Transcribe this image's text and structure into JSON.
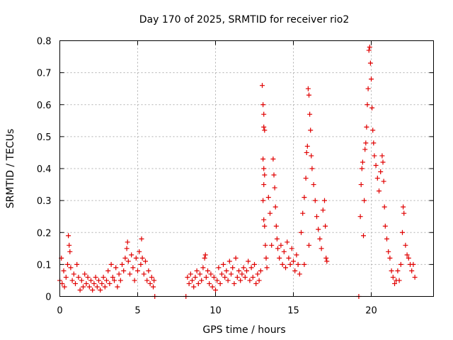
{
  "chart_data": {
    "type": "scatter",
    "title": "Day 170 of 2025, SRMTID for receiver rio2",
    "xlabel": "GPS time / hours",
    "ylabel": "SRMTID / TECUs",
    "xlim": [
      0,
      24
    ],
    "ylim": [
      0,
      0.8
    ],
    "x_ticks": [
      0,
      5,
      10,
      15,
      20
    ],
    "x_tick_labels": [
      "0",
      "5",
      "10",
      "15",
      "20"
    ],
    "y_ticks": [
      0,
      0.1,
      0.2,
      0.3,
      0.4,
      0.5,
      0.6,
      0.7,
      0.8
    ],
    "y_tick_labels": [
      "0",
      "0.1",
      "0.2",
      "0.3",
      "0.4",
      "0.5",
      "0.6",
      "0.7",
      "0.8"
    ],
    "grid": true,
    "marker": "plus",
    "color": "#e00000",
    "series": [
      {
        "name": "rio2",
        "points": [
          [
            0.0,
            0.05
          ],
          [
            0.1,
            0.12
          ],
          [
            0.15,
            0.04
          ],
          [
            0.25,
            0.08
          ],
          [
            0.3,
            0.03
          ],
          [
            0.4,
            0.06
          ],
          [
            0.5,
            0.1
          ],
          [
            0.55,
            0.19
          ],
          [
            0.6,
            0.16
          ],
          [
            0.65,
            0.14
          ],
          [
            0.7,
            0.09
          ],
          [
            0.8,
            0.05
          ],
          [
            0.9,
            0.07
          ],
          [
            1.0,
            0.04
          ],
          [
            1.1,
            0.1
          ],
          [
            1.2,
            0.06
          ],
          [
            1.3,
            0.02
          ],
          [
            1.4,
            0.05
          ],
          [
            1.5,
            0.03
          ],
          [
            1.6,
            0.07
          ],
          [
            1.7,
            0.04
          ],
          [
            1.8,
            0.06
          ],
          [
            1.9,
            0.03
          ],
          [
            2.0,
            0.05
          ],
          [
            2.1,
            0.02
          ],
          [
            2.2,
            0.04
          ],
          [
            2.3,
            0.06
          ],
          [
            2.4,
            0.03
          ],
          [
            2.5,
            0.05
          ],
          [
            2.6,
            0.02
          ],
          [
            2.7,
            0.04
          ],
          [
            2.8,
            0.06
          ],
          [
            2.9,
            0.03
          ],
          [
            3.0,
            0.05
          ],
          [
            3.1,
            0.08
          ],
          [
            3.2,
            0.04
          ],
          [
            3.3,
            0.1
          ],
          [
            3.4,
            0.06
          ],
          [
            3.5,
            0.05
          ],
          [
            3.6,
            0.09
          ],
          [
            3.7,
            0.03
          ],
          [
            3.8,
            0.07
          ],
          [
            3.9,
            0.05
          ],
          [
            4.0,
            0.1
          ],
          [
            4.1,
            0.08
          ],
          [
            4.2,
            0.12
          ],
          [
            4.3,
            0.15
          ],
          [
            4.35,
            0.17
          ],
          [
            4.4,
            0.11
          ],
          [
            4.5,
            0.07
          ],
          [
            4.6,
            0.13
          ],
          [
            4.7,
            0.09
          ],
          [
            4.8,
            0.05
          ],
          [
            4.9,
            0.12
          ],
          [
            5.0,
            0.08
          ],
          [
            5.1,
            0.14
          ],
          [
            5.2,
            0.1
          ],
          [
            5.25,
            0.18
          ],
          [
            5.3,
            0.12
          ],
          [
            5.4,
            0.07
          ],
          [
            5.5,
            0.11
          ],
          [
            5.6,
            0.05
          ],
          [
            5.7,
            0.08
          ],
          [
            5.8,
            0.04
          ],
          [
            5.9,
            0.06
          ],
          [
            6.0,
            0.03
          ],
          [
            6.05,
            0.05
          ],
          [
            6.1,
            0.0
          ],
          [
            8.1,
            0.0
          ],
          [
            8.2,
            0.06
          ],
          [
            8.3,
            0.04
          ],
          [
            8.4,
            0.07
          ],
          [
            8.5,
            0.05
          ],
          [
            8.6,
            0.03
          ],
          [
            8.7,
            0.06
          ],
          [
            8.8,
            0.08
          ],
          [
            8.9,
            0.04
          ],
          [
            9.0,
            0.07
          ],
          [
            9.1,
            0.05
          ],
          [
            9.2,
            0.09
          ],
          [
            9.3,
            0.12
          ],
          [
            9.35,
            0.13
          ],
          [
            9.4,
            0.06
          ],
          [
            9.5,
            0.08
          ],
          [
            9.6,
            0.04
          ],
          [
            9.7,
            0.07
          ],
          [
            9.8,
            0.03
          ],
          [
            9.9,
            0.06
          ],
          [
            10.0,
            0.02
          ],
          [
            10.1,
            0.05
          ],
          [
            10.2,
            0.09
          ],
          [
            10.3,
            0.04
          ],
          [
            10.4,
            0.07
          ],
          [
            10.5,
            0.1
          ],
          [
            10.6,
            0.06
          ],
          [
            10.7,
            0.08
          ],
          [
            10.8,
            0.05
          ],
          [
            10.9,
            0.11
          ],
          [
            11.0,
            0.07
          ],
          [
            11.1,
            0.09
          ],
          [
            11.2,
            0.04
          ],
          [
            11.3,
            0.12
          ],
          [
            11.4,
            0.06
          ],
          [
            11.5,
            0.08
          ],
          [
            11.6,
            0.05
          ],
          [
            11.7,
            0.07
          ],
          [
            11.8,
            0.09
          ],
          [
            11.9,
            0.06
          ],
          [
            12.0,
            0.08
          ],
          [
            12.1,
            0.11
          ],
          [
            12.2,
            0.05
          ],
          [
            12.3,
            0.09
          ],
          [
            12.4,
            0.06
          ],
          [
            12.5,
            0.1
          ],
          [
            12.6,
            0.04
          ],
          [
            12.7,
            0.07
          ],
          [
            12.8,
            0.05
          ],
          [
            12.9,
            0.08
          ],
          [
            13.0,
            0.66
          ],
          [
            13.05,
            0.6
          ],
          [
            13.1,
            0.57
          ],
          [
            13.1,
            0.53
          ],
          [
            13.15,
            0.52
          ],
          [
            13.05,
            0.43
          ],
          [
            13.1,
            0.4
          ],
          [
            13.15,
            0.38
          ],
          [
            13.1,
            0.35
          ],
          [
            13.05,
            0.3
          ],
          [
            13.1,
            0.24
          ],
          [
            13.15,
            0.22
          ],
          [
            13.2,
            0.16
          ],
          [
            13.25,
            0.12
          ],
          [
            13.3,
            0.09
          ],
          [
            13.4,
            0.31
          ],
          [
            13.5,
            0.26
          ],
          [
            13.6,
            0.16
          ],
          [
            13.7,
            0.43
          ],
          [
            13.75,
            0.38
          ],
          [
            13.8,
            0.34
          ],
          [
            13.85,
            0.28
          ],
          [
            13.9,
            0.22
          ],
          [
            13.95,
            0.18
          ],
          [
            14.0,
            0.15
          ],
          [
            14.1,
            0.12
          ],
          [
            14.2,
            0.16
          ],
          [
            14.3,
            0.1
          ],
          [
            14.4,
            0.14
          ],
          [
            14.5,
            0.09
          ],
          [
            14.6,
            0.17
          ],
          [
            14.7,
            0.12
          ],
          [
            14.8,
            0.1
          ],
          [
            14.9,
            0.15
          ],
          [
            15.0,
            0.11
          ],
          [
            15.1,
            0.08
          ],
          [
            15.2,
            0.13
          ],
          [
            15.3,
            0.1
          ],
          [
            15.4,
            0.07
          ],
          [
            15.5,
            0.2
          ],
          [
            15.6,
            0.26
          ],
          [
            15.7,
            0.31
          ],
          [
            15.8,
            0.37
          ],
          [
            15.85,
            0.45
          ],
          [
            15.9,
            0.47
          ],
          [
            15.95,
            0.65
          ],
          [
            16.0,
            0.63
          ],
          [
            16.05,
            0.57
          ],
          [
            16.1,
            0.52
          ],
          [
            16.15,
            0.44
          ],
          [
            16.2,
            0.4
          ],
          [
            16.3,
            0.35
          ],
          [
            16.4,
            0.3
          ],
          [
            16.5,
            0.25
          ],
          [
            16.6,
            0.21
          ],
          [
            16.7,
            0.18
          ],
          [
            16.8,
            0.15
          ],
          [
            16.9,
            0.27
          ],
          [
            17.0,
            0.3
          ],
          [
            17.05,
            0.22
          ],
          [
            17.1,
            0.12
          ],
          [
            17.15,
            0.11
          ],
          [
            15.7,
            0.1
          ],
          [
            16.0,
            0.16
          ],
          [
            19.2,
            0.0
          ],
          [
            19.3,
            0.25
          ],
          [
            19.35,
            0.35
          ],
          [
            19.4,
            0.4
          ],
          [
            19.45,
            0.42
          ],
          [
            19.5,
            0.19
          ],
          [
            19.55,
            0.3
          ],
          [
            19.6,
            0.46
          ],
          [
            19.65,
            0.48
          ],
          [
            19.7,
            0.53
          ],
          [
            19.75,
            0.6
          ],
          [
            19.8,
            0.65
          ],
          [
            19.85,
            0.77
          ],
          [
            19.9,
            0.78
          ],
          [
            19.95,
            0.73
          ],
          [
            20.0,
            0.68
          ],
          [
            20.05,
            0.59
          ],
          [
            20.1,
            0.52
          ],
          [
            20.15,
            0.48
          ],
          [
            20.2,
            0.44
          ],
          [
            20.3,
            0.41
          ],
          [
            20.4,
            0.37
          ],
          [
            20.5,
            0.33
          ],
          [
            20.6,
            0.39
          ],
          [
            20.7,
            0.44
          ],
          [
            20.75,
            0.42
          ],
          [
            20.8,
            0.36
          ],
          [
            20.85,
            0.28
          ],
          [
            20.9,
            0.22
          ],
          [
            21.0,
            0.18
          ],
          [
            21.1,
            0.14
          ],
          [
            21.2,
            0.12
          ],
          [
            21.3,
            0.08
          ],
          [
            21.4,
            0.06
          ],
          [
            21.5,
            0.04
          ],
          [
            21.6,
            0.05
          ],
          [
            21.7,
            0.08
          ],
          [
            21.8,
            0.05
          ],
          [
            21.9,
            0.1
          ],
          [
            22.0,
            0.2
          ],
          [
            22.05,
            0.28
          ],
          [
            22.1,
            0.26
          ],
          [
            22.2,
            0.16
          ],
          [
            22.3,
            0.13
          ],
          [
            22.4,
            0.12
          ],
          [
            22.5,
            0.1
          ],
          [
            22.6,
            0.08
          ],
          [
            22.7,
            0.1
          ],
          [
            22.8,
            0.06
          ]
        ]
      }
    ]
  }
}
